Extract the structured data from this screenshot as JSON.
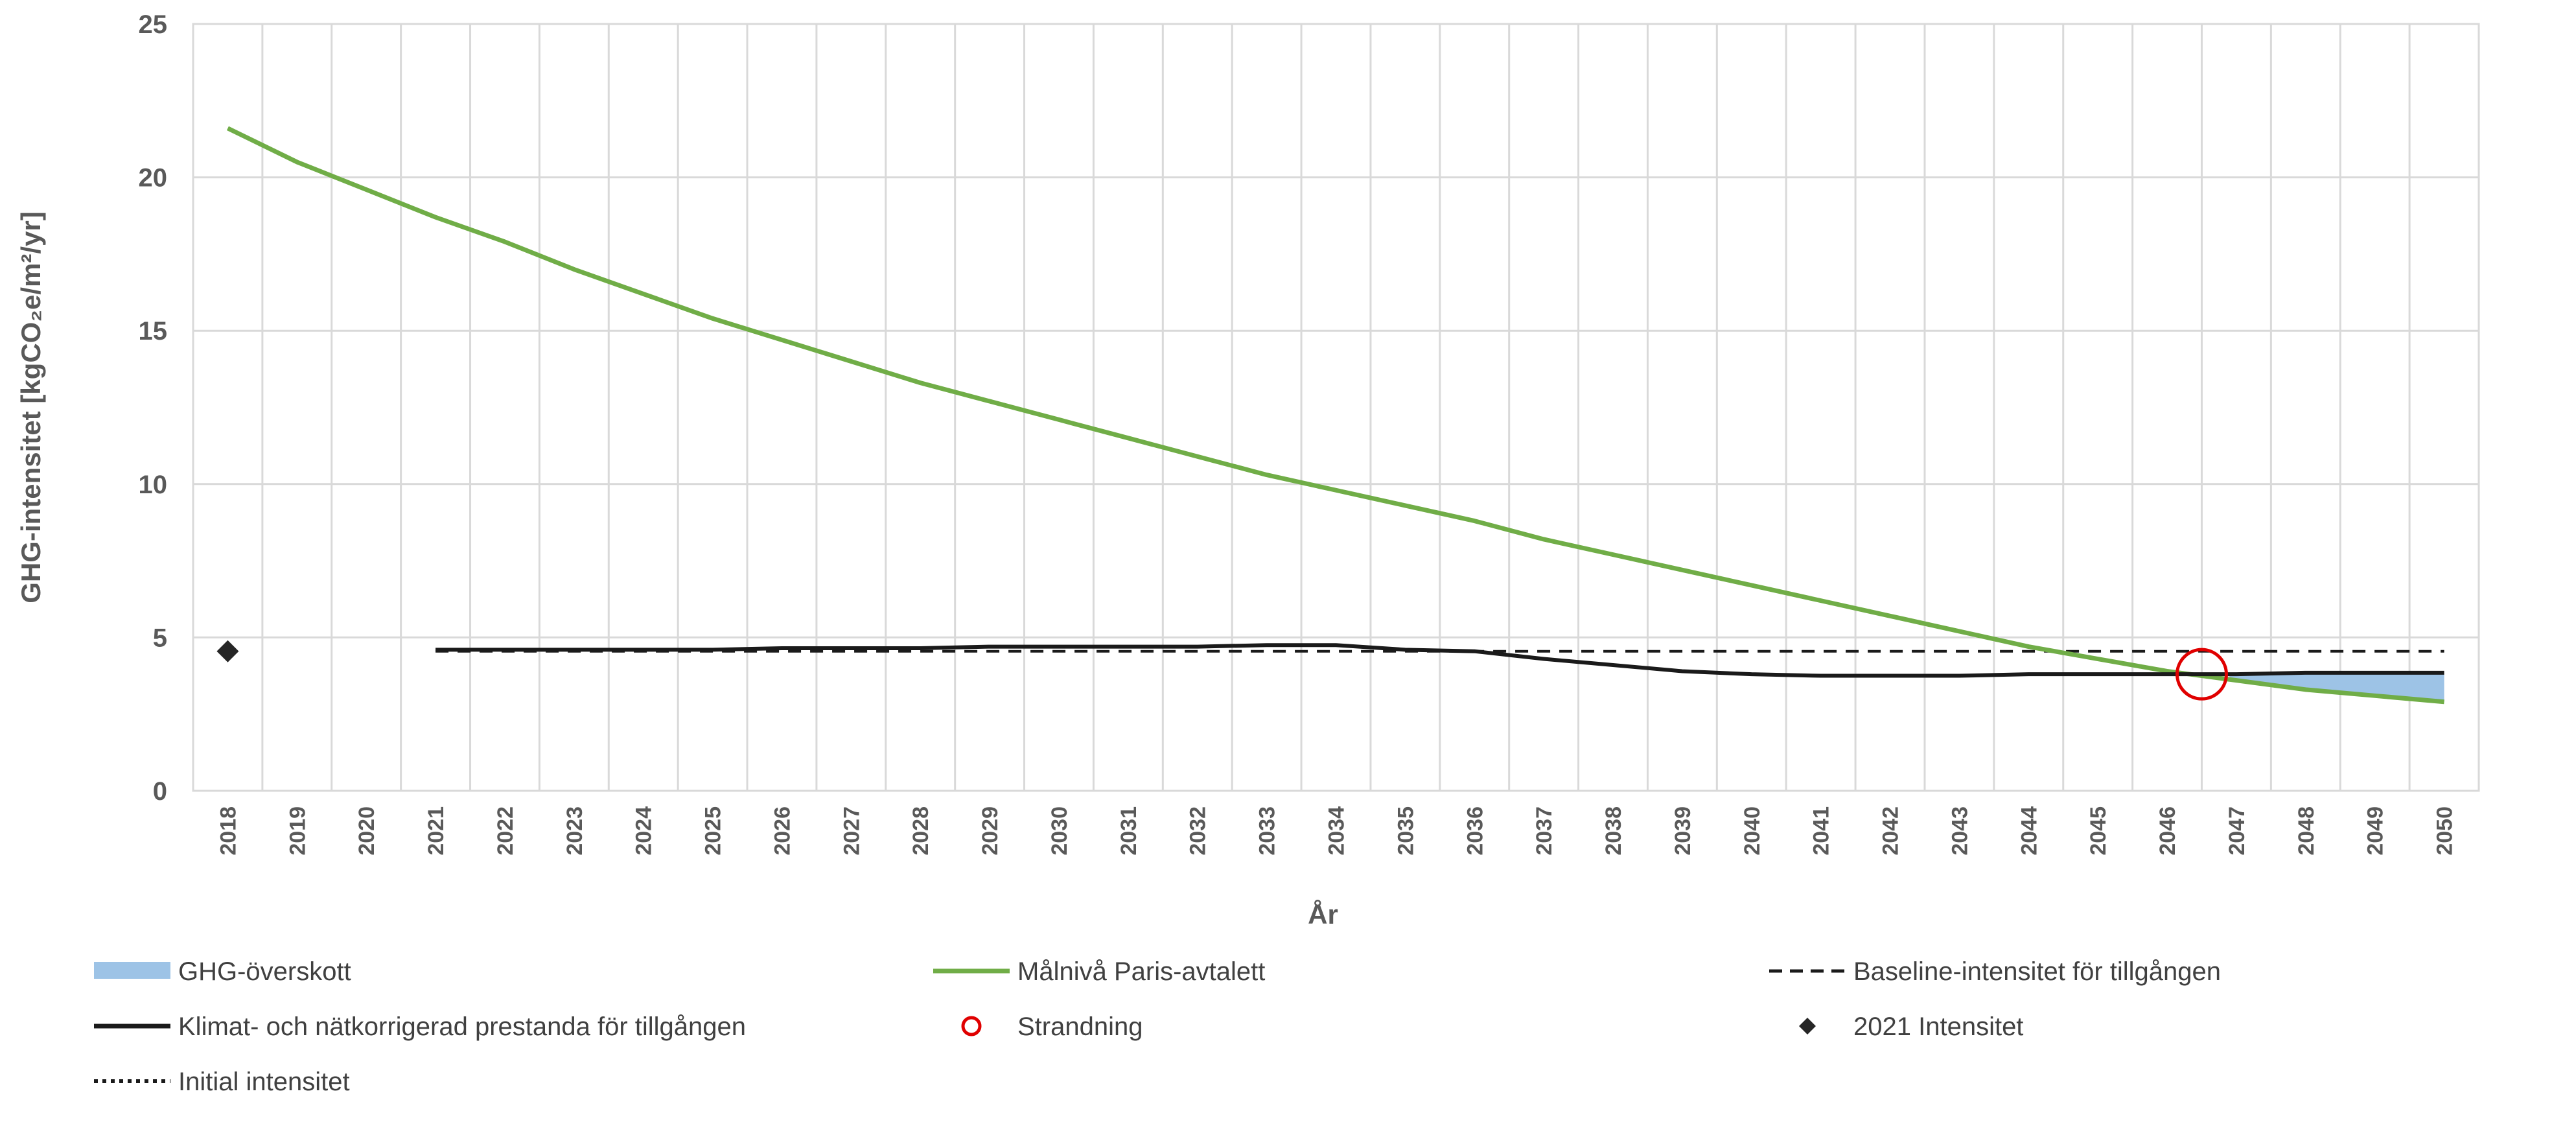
{
  "chart_data": {
    "type": "line",
    "ylabel": "GHG-intensitet [kgCO₂e/m²/yr]",
    "xlabel": "År",
    "ylim": [
      0,
      25
    ],
    "yticks": [
      "0",
      "5",
      "10",
      "15",
      "20",
      "25"
    ],
    "categories": [
      "2018",
      "2019",
      "2020",
      "2021",
      "2022",
      "2023",
      "2024",
      "2025",
      "2026",
      "2027",
      "2028",
      "2029",
      "2030",
      "2031",
      "2032",
      "2033",
      "2034",
      "2035",
      "2036",
      "2037",
      "2038",
      "2039",
      "2040",
      "2041",
      "2042",
      "2043",
      "2044",
      "2045",
      "2046",
      "2047",
      "2048",
      "2049",
      "2050"
    ],
    "grid": true,
    "legend_position": "bottom",
    "series": [
      {
        "name": "Målnivå Paris-avtalett",
        "color": "#70ad47",
        "x": [
          2018,
          2019,
          2020,
          2021,
          2022,
          2023,
          2024,
          2025,
          2026,
          2027,
          2028,
          2029,
          2030,
          2031,
          2032,
          2033,
          2034,
          2035,
          2036,
          2037,
          2038,
          2039,
          2040,
          2041,
          2042,
          2043,
          2044,
          2045,
          2046,
          2047,
          2048,
          2049,
          2050
        ],
        "values": [
          21.6,
          20.5,
          19.6,
          18.7,
          17.9,
          17.0,
          16.2,
          15.4,
          14.7,
          14.0,
          13.3,
          12.7,
          12.1,
          11.5,
          10.9,
          10.3,
          9.8,
          9.3,
          8.8,
          8.2,
          7.7,
          7.2,
          6.7,
          6.2,
          5.7,
          5.2,
          4.7,
          4.3,
          3.9,
          3.6,
          3.3,
          3.1,
          2.9
        ]
      },
      {
        "name": "Klimat- och nätkorrigerad prestanda för tillgången",
        "color": "#1a1a1a",
        "x": [
          2021,
          2022,
          2023,
          2024,
          2025,
          2026,
          2027,
          2028,
          2029,
          2030,
          2031,
          2032,
          2033,
          2034,
          2035,
          2036,
          2037,
          2038,
          2039,
          2040,
          2041,
          2042,
          2043,
          2044,
          2045,
          2046,
          2047,
          2048,
          2049,
          2050
        ],
        "values": [
          4.6,
          4.6,
          4.6,
          4.6,
          4.6,
          4.65,
          4.65,
          4.65,
          4.7,
          4.7,
          4.7,
          4.7,
          4.75,
          4.75,
          4.6,
          4.55,
          4.3,
          4.1,
          3.9,
          3.8,
          3.75,
          3.75,
          3.75,
          3.8,
          3.8,
          3.8,
          3.8,
          3.85,
          3.85,
          3.85
        ]
      },
      {
        "name": "Baseline-intensitet för tillgången",
        "color": "#1a1a1a",
        "dash": "dashed",
        "x": [
          2021,
          2050
        ],
        "values": [
          4.55,
          4.55
        ]
      }
    ],
    "excess_area": {
      "name": "GHG-överskott",
      "color": "#9dc3e6",
      "from_x": 2046.9,
      "to_x": 2050
    },
    "stranding_point": {
      "name": "Strandning",
      "x": 2046.5,
      "y": 3.8,
      "color": "#e00000"
    },
    "intensity_2021_point": {
      "name": "2021 Intensitet",
      "x": 2018,
      "y": 4.55,
      "color": "#262626"
    },
    "legend": [
      {
        "label": "GHG-överskott",
        "marker": "area",
        "color": "#9dc3e6"
      },
      {
        "label": "Målnivå Paris-avtalett",
        "marker": "line",
        "color": "#70ad47"
      },
      {
        "label": "Baseline-intensitet för tillgången",
        "marker": "dashed",
        "color": "#1a1a1a"
      },
      {
        "label": "Klimat- och nätkorrigerad prestanda för tillgången",
        "marker": "line",
        "color": "#1a1a1a"
      },
      {
        "label": "Strandning",
        "marker": "circle",
        "color": "#e00000"
      },
      {
        "label": "2021 Intensitet",
        "marker": "diamond",
        "color": "#262626"
      },
      {
        "label": "Initial intensitet",
        "marker": "dotted",
        "color": "#1a1a1a"
      }
    ]
  }
}
